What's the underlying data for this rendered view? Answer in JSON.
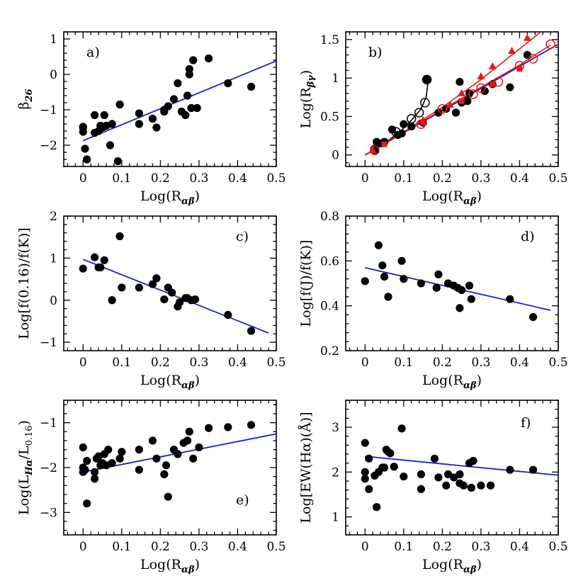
{
  "chart_data": [
    {
      "type": "scatter",
      "panel_label": "a)",
      "xlabel": "Log(R",
      "xlabel_sub": "αβ",
      "xlabel_end": ")",
      "ylabel": "β",
      "ylabel_sub": "26",
      "ylabel_end": "",
      "xlim": [
        -0.05,
        0.5
      ],
      "ylim": [
        -2.6,
        1.2
      ],
      "xticks": [
        0,
        0.1,
        0.2,
        0.3,
        0.4,
        0.5
      ],
      "xtick_labels": [
        "0",
        "0.1",
        "0.2",
        "0.3",
        "0.4",
        "0.5"
      ],
      "yticks": [
        -2,
        -1,
        0,
        1
      ],
      "ytick_labels": [
        "−2",
        "−1",
        "0",
        "1"
      ],
      "points": [
        [
          0.0,
          -1.5
        ],
        [
          0.0,
          -1.62
        ],
        [
          0.0,
          -1.48
        ],
        [
          0.005,
          -2.1
        ],
        [
          0.01,
          -2.4
        ],
        [
          0.03,
          -1.65
        ],
        [
          0.03,
          -1.15
        ],
        [
          0.04,
          -1.6
        ],
        [
          0.045,
          -1.45
        ],
        [
          0.05,
          -1.5
        ],
        [
          0.055,
          -1.15
        ],
        [
          0.06,
          -1.45
        ],
        [
          0.07,
          -2.0
        ],
        [
          0.075,
          -1.4
        ],
        [
          0.09,
          -2.45
        ],
        [
          0.095,
          -0.85
        ],
        [
          0.145,
          -1.1
        ],
        [
          0.145,
          -1.4
        ],
        [
          0.18,
          -1.25
        ],
        [
          0.19,
          -1.5
        ],
        [
          0.21,
          -1.0
        ],
        [
          0.21,
          -1.05
        ],
        [
          0.22,
          -0.9
        ],
        [
          0.235,
          -0.7
        ],
        [
          0.245,
          -0.25
        ],
        [
          0.255,
          -1.05
        ],
        [
          0.265,
          -1.15
        ],
        [
          0.27,
          -0.6
        ],
        [
          0.275,
          0.0
        ],
        [
          0.275,
          0.15
        ],
        [
          0.28,
          -0.95
        ],
        [
          0.285,
          0.4
        ],
        [
          0.295,
          -0.95
        ],
        [
          0.325,
          0.45
        ],
        [
          0.375,
          -0.25
        ],
        [
          0.435,
          -0.35
        ]
      ],
      "fits": [
        {
          "x": [
            0.0,
            0.5
          ],
          "y": [
            -1.87,
            0.38
          ],
          "color": "#1f1fcc"
        }
      ]
    },
    {
      "type": "scatter",
      "panel_label": "b)",
      "xlabel": "Log(R",
      "xlabel_sub": "αβ",
      "xlabel_end": ")",
      "ylabel": "Log(R",
      "ylabel_sub": "βγ",
      "ylabel_end": ")",
      "xlim": [
        -0.05,
        0.5
      ],
      "ylim": [
        -0.15,
        1.6
      ],
      "xticks": [
        0,
        0.1,
        0.2,
        0.3,
        0.4,
        0.5
      ],
      "xtick_labels": [
        "0",
        "0.1",
        "0.2",
        "0.3",
        "0.4",
        "0.5"
      ],
      "yticks": [
        0,
        0.5,
        1,
        1.5
      ],
      "ytick_labels": [
        "0",
        "0.5",
        "1",
        "1.5"
      ],
      "points": [
        [
          0.025,
          0.07
        ],
        [
          0.03,
          0.17
        ],
        [
          0.04,
          0.15
        ],
        [
          0.05,
          0.17
        ],
        [
          0.07,
          0.33
        ],
        [
          0.085,
          0.26
        ],
        [
          0.095,
          0.28
        ],
        [
          0.1,
          0.4
        ],
        [
          0.12,
          0.37
        ],
        [
          0.15,
          0.42
        ],
        [
          0.16,
          0.98
        ],
        [
          0.19,
          0.55
        ],
        [
          0.21,
          0.6
        ],
        [
          0.235,
          0.55
        ],
        [
          0.245,
          0.95
        ],
        [
          0.25,
          0.68
        ],
        [
          0.265,
          0.7
        ],
        [
          0.27,
          0.8
        ],
        [
          0.31,
          0.83
        ],
        [
          0.33,
          0.92
        ],
        [
          0.375,
          0.88
        ],
        [
          0.42,
          1.3
        ]
      ],
      "overlays": [
        {
          "color": "#000000",
          "marker": "open-circle",
          "points": [
            [
              0.025,
              0.07
            ],
            [
              0.08,
              0.3
            ],
            [
              0.12,
              0.47
            ],
            [
              0.14,
              0.55
            ],
            [
              0.155,
              0.68
            ],
            [
              0.16,
              0.98
            ]
          ],
          "curve": [
            [
              0.0,
              0.0
            ],
            [
              0.05,
              0.15
            ],
            [
              0.09,
              0.3
            ],
            [
              0.12,
              0.45
            ],
            [
              0.145,
              0.6
            ],
            [
              0.158,
              0.75
            ],
            [
              0.162,
              0.9
            ],
            [
              0.162,
              0.98
            ]
          ]
        },
        {
          "color": "#e01c1c",
          "marker": "open-circle",
          "points": [
            [
              0.025,
              0.06
            ],
            [
              0.145,
              0.4
            ],
            [
              0.2,
              0.6
            ],
            [
              0.28,
              0.79
            ],
            [
              0.3,
              0.87
            ],
            [
              0.345,
              0.95
            ],
            [
              0.4,
              1.16
            ],
            [
              0.435,
              1.25
            ],
            [
              0.48,
              1.44
            ]
          ],
          "curve": [
            [
              0.0,
              0.0
            ],
            [
              0.1,
              0.29
            ],
            [
              0.2,
              0.59
            ],
            [
              0.3,
              0.88
            ],
            [
              0.4,
              1.17
            ],
            [
              0.48,
              1.43
            ]
          ]
        },
        {
          "color": "#e01c1c",
          "marker": "filled-triangle",
          "points": [
            [
              0.02,
              0.06
            ],
            [
              0.15,
              0.45
            ],
            [
              0.22,
              0.65
            ],
            [
              0.25,
              0.8
            ],
            [
              0.3,
              1.02
            ],
            [
              0.33,
              1.15
            ],
            [
              0.38,
              1.35
            ],
            [
              0.42,
              1.52
            ]
          ],
          "curve": [
            [
              0.0,
              0.0
            ],
            [
              0.1,
              0.3
            ],
            [
              0.2,
              0.62
            ],
            [
              0.3,
              0.98
            ],
            [
              0.4,
              1.38
            ],
            [
              0.46,
              1.62
            ]
          ]
        },
        {
          "color": "#e01c1c",
          "marker": "filled-square",
          "points": [
            [
              0.05,
              0.14
            ],
            [
              0.15,
              0.42
            ],
            [
              0.25,
              0.7
            ],
            [
              0.33,
              0.92
            ],
            [
              0.4,
              1.12
            ]
          ],
          "curve": []
        }
      ],
      "fits": [
        {
          "x": [
            0.0,
            0.5
          ],
          "y": [
            0.0,
            1.44
          ],
          "color": "#1f1fcc"
        }
      ]
    },
    {
      "type": "scatter",
      "panel_label": "c)",
      "xlabel": "Log(R",
      "xlabel_sub": "αβ",
      "xlabel_end": ")",
      "ylabel": "Log[f(0.16)/f(K)]",
      "ylabel_sub": "",
      "ylabel_end": "",
      "xlim": [
        -0.05,
        0.5
      ],
      "ylim": [
        -1.2,
        2.0
      ],
      "xticks": [
        0,
        0.1,
        0.2,
        0.3,
        0.4,
        0.5
      ],
      "xtick_labels": [
        "0",
        "0.1",
        "0.2",
        "0.3",
        "0.4",
        "0.5"
      ],
      "yticks": [
        -1,
        0,
        1,
        2
      ],
      "ytick_labels": [
        "−1",
        "0",
        "1",
        "2"
      ],
      "points": [
        [
          0.0,
          0.75
        ],
        [
          0.03,
          1.02
        ],
        [
          0.04,
          0.78
        ],
        [
          0.045,
          0.78
        ],
        [
          0.055,
          0.95
        ],
        [
          0.075,
          0.0
        ],
        [
          0.095,
          1.52
        ],
        [
          0.1,
          0.3
        ],
        [
          0.145,
          0.3
        ],
        [
          0.18,
          0.38
        ],
        [
          0.19,
          0.52
        ],
        [
          0.21,
          0.02
        ],
        [
          0.22,
          0.3
        ],
        [
          0.23,
          0.18
        ],
        [
          0.245,
          -0.15
        ],
        [
          0.25,
          -0.05
        ],
        [
          0.265,
          0.05
        ],
        [
          0.27,
          0.05
        ],
        [
          0.28,
          0.0
        ],
        [
          0.29,
          0.02
        ],
        [
          0.375,
          -0.35
        ],
        [
          0.435,
          -0.73
        ]
      ],
      "fits": [
        {
          "x": [
            0.0,
            0.48
          ],
          "y": [
            0.97,
            -0.78
          ],
          "color": "#1f1fcc"
        }
      ]
    },
    {
      "type": "scatter",
      "panel_label": "d)",
      "xlabel": "Log(R",
      "xlabel_sub": "αβ",
      "xlabel_end": ")",
      "ylabel": "Log[f(J)/f(K)]",
      "ylabel_sub": "",
      "ylabel_end": "",
      "xlim": [
        -0.05,
        0.5
      ],
      "ylim": [
        0.2,
        0.8
      ],
      "xticks": [
        0,
        0.1,
        0.2,
        0.3,
        0.4,
        0.5
      ],
      "xtick_labels": [
        "0",
        "0.1",
        "0.2",
        "0.3",
        "0.4",
        "0.5"
      ],
      "yticks": [
        0.2,
        0.4,
        0.6,
        0.8
      ],
      "ytick_labels": [
        "0.2",
        "0.4",
        "0.6",
        "0.8"
      ],
      "points": [
        [
          0.0,
          0.51
        ],
        [
          0.035,
          0.67
        ],
        [
          0.045,
          0.58
        ],
        [
          0.05,
          0.53
        ],
        [
          0.06,
          0.44
        ],
        [
          0.095,
          0.6
        ],
        [
          0.1,
          0.52
        ],
        [
          0.145,
          0.5
        ],
        [
          0.185,
          0.48
        ],
        [
          0.19,
          0.54
        ],
        [
          0.215,
          0.5
        ],
        [
          0.23,
          0.49
        ],
        [
          0.24,
          0.48
        ],
        [
          0.245,
          0.39
        ],
        [
          0.25,
          0.47
        ],
        [
          0.27,
          0.49
        ],
        [
          0.275,
          0.43
        ],
        [
          0.375,
          0.43
        ],
        [
          0.435,
          0.35
        ]
      ],
      "fits": [
        {
          "x": [
            0.0,
            0.48
          ],
          "y": [
            0.57,
            0.38
          ],
          "color": "#1f1fcc"
        }
      ]
    },
    {
      "type": "scatter",
      "panel_label": "e)",
      "xlabel": "Log(R",
      "xlabel_sub": "αβ",
      "xlabel_end": ")",
      "ylabel": "Log(L",
      "ylabel_sub": "Hα",
      "ylabel_end": "/L",
      "ylabel_sub2": "0.16",
      "ylabel_end2": ")",
      "xlim": [
        -0.05,
        0.5
      ],
      "ylim": [
        -3.5,
        -0.5
      ],
      "xticks": [
        0,
        0.1,
        0.2,
        0.3,
        0.4,
        0.5
      ],
      "xtick_labels": [
        "0",
        "0.1",
        "0.2",
        "0.3",
        "0.4",
        "0.5"
      ],
      "yticks": [
        -3,
        -2,
        -1
      ],
      "ytick_labels": [
        "−3",
        "−2",
        "−1"
      ],
      "points": [
        [
          0.0,
          -1.55
        ],
        [
          0.0,
          -2.0
        ],
        [
          0.0,
          -2.1
        ],
        [
          0.005,
          -2.05
        ],
        [
          0.01,
          -1.85
        ],
        [
          0.01,
          -2.8
        ],
        [
          0.03,
          -2.1
        ],
        [
          0.03,
          -2.25
        ],
        [
          0.035,
          -1.8
        ],
        [
          0.04,
          -1.75
        ],
        [
          0.045,
          -1.95
        ],
        [
          0.05,
          -1.9
        ],
        [
          0.055,
          -1.7
        ],
        [
          0.06,
          -1.95
        ],
        [
          0.065,
          -1.6
        ],
        [
          0.075,
          -1.9
        ],
        [
          0.095,
          -1.8
        ],
        [
          0.1,
          -1.65
        ],
        [
          0.145,
          -2.05
        ],
        [
          0.145,
          -1.6
        ],
        [
          0.18,
          -1.4
        ],
        [
          0.19,
          -1.8
        ],
        [
          0.21,
          -2.15
        ],
        [
          0.215,
          -1.95
        ],
        [
          0.22,
          -2.65
        ],
        [
          0.235,
          -1.6
        ],
        [
          0.245,
          -1.7
        ],
        [
          0.26,
          -1.45
        ],
        [
          0.27,
          -1.4
        ],
        [
          0.275,
          -1.2
        ],
        [
          0.285,
          -1.8
        ],
        [
          0.3,
          -1.55
        ],
        [
          0.325,
          -1.12
        ],
        [
          0.375,
          -1.1
        ],
        [
          0.435,
          -1.05
        ]
      ],
      "fits": [
        {
          "x": [
            0.0,
            0.5
          ],
          "y": [
            -2.1,
            -1.25
          ],
          "color": "#1f1fcc"
        }
      ]
    },
    {
      "type": "scatter",
      "panel_label": "f)",
      "xlabel": "Log(R",
      "xlabel_sub": "αβ",
      "xlabel_end": ")",
      "ylabel": "Log[EW(Hα)(Å)]",
      "ylabel_sub": "",
      "ylabel_end": "",
      "xlim": [
        -0.05,
        0.5
      ],
      "ylim": [
        0.6,
        3.6
      ],
      "xticks": [
        0,
        0.1,
        0.2,
        0.3,
        0.4,
        0.5
      ],
      "xtick_labels": [
        "0",
        "0.1",
        "0.2",
        "0.3",
        "0.4",
        "0.5"
      ],
      "yticks": [
        1,
        2,
        3
      ],
      "ytick_labels": [
        "1",
        "2",
        "3"
      ],
      "points": [
        [
          0.0,
          2.65
        ],
        [
          0.0,
          2.0
        ],
        [
          0.0,
          1.85
        ],
        [
          0.01,
          1.62
        ],
        [
          0.01,
          2.3
        ],
        [
          0.025,
          1.92
        ],
        [
          0.03,
          1.22
        ],
        [
          0.035,
          2.0
        ],
        [
          0.045,
          2.1
        ],
        [
          0.05,
          2.1
        ],
        [
          0.055,
          2.5
        ],
        [
          0.06,
          2.45
        ],
        [
          0.065,
          2.42
        ],
        [
          0.075,
          2.12
        ],
        [
          0.095,
          2.97
        ],
        [
          0.1,
          1.9
        ],
        [
          0.145,
          1.62
        ],
        [
          0.145,
          1.95
        ],
        [
          0.18,
          2.3
        ],
        [
          0.19,
          1.88
        ],
        [
          0.21,
          1.7
        ],
        [
          0.215,
          1.95
        ],
        [
          0.23,
          1.88
        ],
        [
          0.245,
          1.95
        ],
        [
          0.245,
          1.75
        ],
        [
          0.255,
          1.7
        ],
        [
          0.27,
          2.2
        ],
        [
          0.275,
          1.65
        ],
        [
          0.28,
          2.25
        ],
        [
          0.3,
          1.7
        ],
        [
          0.325,
          1.7
        ],
        [
          0.375,
          2.05
        ],
        [
          0.435,
          2.05
        ]
      ],
      "fits": [
        {
          "x": [
            0.0,
            0.5
          ],
          "y": [
            2.35,
            1.93
          ],
          "color": "#1f1fcc"
        }
      ]
    }
  ]
}
